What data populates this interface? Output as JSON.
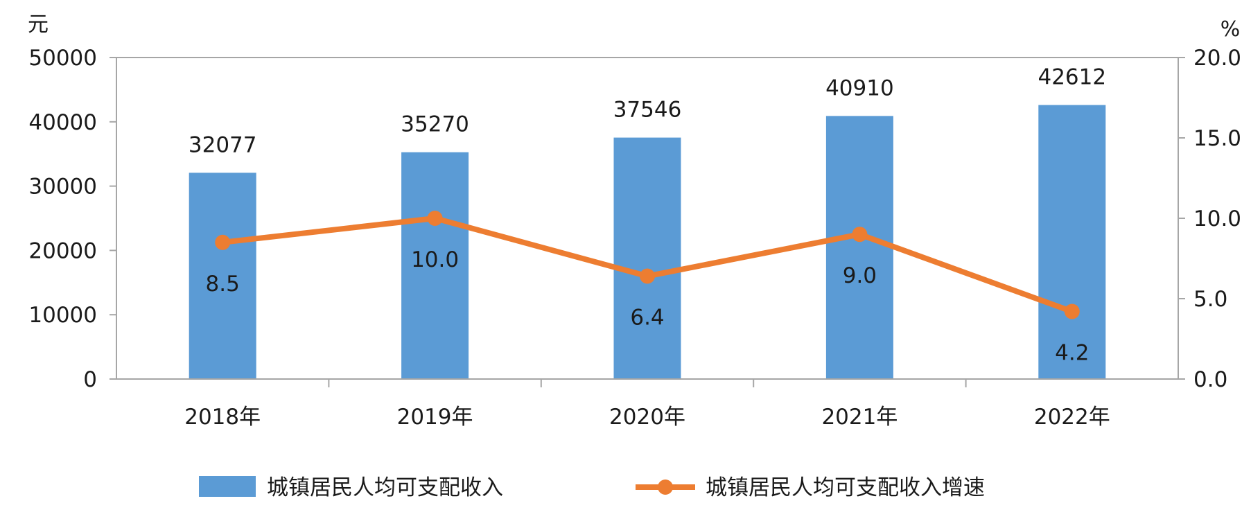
{
  "chart_data": {
    "type": "bar+line",
    "categories": [
      "2018年",
      "2019年",
      "2020年",
      "2021年",
      "2022年"
    ],
    "left_axis": {
      "unit": "元",
      "ylim": [
        0,
        50000
      ],
      "ticks": [
        "0",
        "10000",
        "20000",
        "30000",
        "40000",
        "50000"
      ]
    },
    "right_axis": {
      "unit": "%",
      "ylim": [
        0,
        20
      ],
      "ticks": [
        "0.0",
        "5.0",
        "10.0",
        "15.0",
        "20.0"
      ]
    },
    "series": [
      {
        "name": "城镇居民人均可支配收入",
        "type": "bar",
        "axis": "left",
        "color": "#5b9bd5",
        "values": [
          32077,
          35270,
          37546,
          40910,
          42612
        ],
        "labels": [
          "32077",
          "35270",
          "37546",
          "40910",
          "42612"
        ]
      },
      {
        "name": "城镇居民人均可支配收入增速",
        "type": "line",
        "axis": "right",
        "color": "#ed7d31",
        "values": [
          8.5,
          10.0,
          6.4,
          9.0,
          4.2
        ],
        "labels": [
          "8.5",
          "10.0",
          "6.4",
          "9.0",
          "4.2"
        ]
      }
    ],
    "grid": false,
    "legend": "bottom"
  }
}
